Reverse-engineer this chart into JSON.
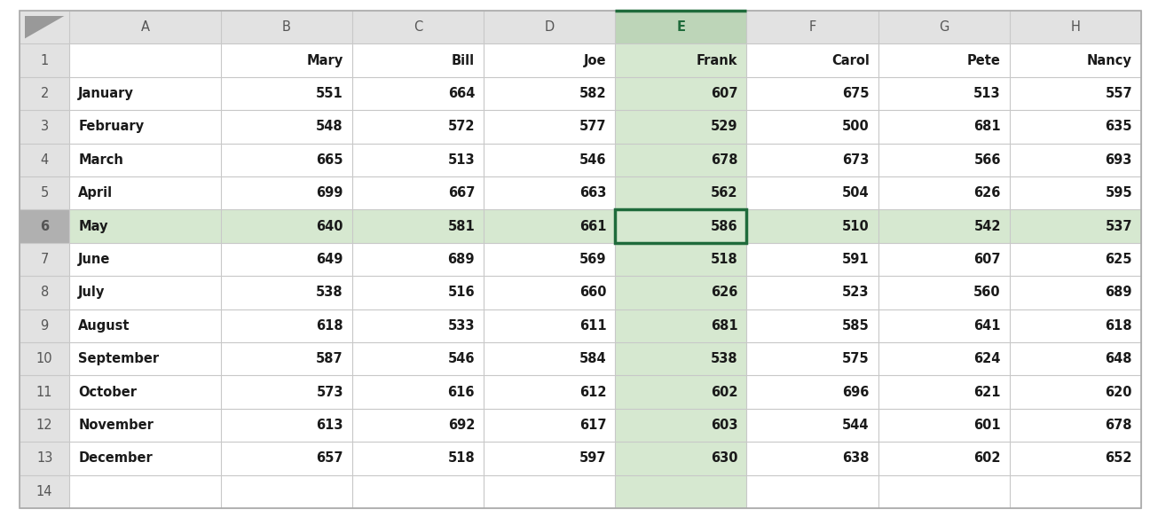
{
  "col_headers": [
    "A",
    "B",
    "C",
    "D",
    "E",
    "F",
    "G",
    "H"
  ],
  "row_numbers": [
    "1",
    "2",
    "3",
    "4",
    "5",
    "6",
    "7",
    "8",
    "9",
    "10",
    "11",
    "12",
    "13",
    "14"
  ],
  "data": [
    [
      "",
      "Mary",
      "Bill",
      "Joe",
      "Frank",
      "Carol",
      "Pete",
      "Nancy"
    ],
    [
      "January",
      551,
      664,
      582,
      607,
      675,
      513,
      557
    ],
    [
      "February",
      548,
      572,
      577,
      529,
      500,
      681,
      635
    ],
    [
      "March",
      665,
      513,
      546,
      678,
      673,
      566,
      693
    ],
    [
      "April",
      699,
      667,
      663,
      562,
      504,
      626,
      595
    ],
    [
      "May",
      640,
      581,
      661,
      586,
      510,
      542,
      537
    ],
    [
      "June",
      649,
      689,
      569,
      518,
      591,
      607,
      625
    ],
    [
      "July",
      538,
      516,
      660,
      626,
      523,
      560,
      689
    ],
    [
      "August",
      618,
      533,
      611,
      681,
      585,
      641,
      618
    ],
    [
      "September",
      587,
      546,
      584,
      538,
      575,
      624,
      648
    ],
    [
      "October",
      573,
      616,
      612,
      602,
      696,
      621,
      620
    ],
    [
      "November",
      613,
      692,
      617,
      603,
      544,
      601,
      678
    ],
    [
      "December",
      657,
      518,
      597,
      630,
      638,
      602,
      652
    ],
    [
      "",
      "",
      "",
      "",
      "",
      "",
      "",
      ""
    ]
  ],
  "active_row": 5,
  "active_col": 4,
  "col_highlight_color": "#d6e8d0",
  "row_highlight_color": "#d6e8d0",
  "active_cell_border_color": "#1f6b3b",
  "header_active_col_color": "#bdd5b8",
  "header_row_color": "#e2e2e2",
  "row_number_active_color": "#b0b0b0",
  "grid_color": "#c8c8c8",
  "outer_border_color": "#aaaaaa",
  "background_color": "#ffffff",
  "header_text_color": "#555555",
  "data_text_color": "#1a1a1a",
  "active_header_text_color": "#1f6b3b",
  "figwidth": 12.96,
  "figheight": 5.83,
  "dpi": 100
}
